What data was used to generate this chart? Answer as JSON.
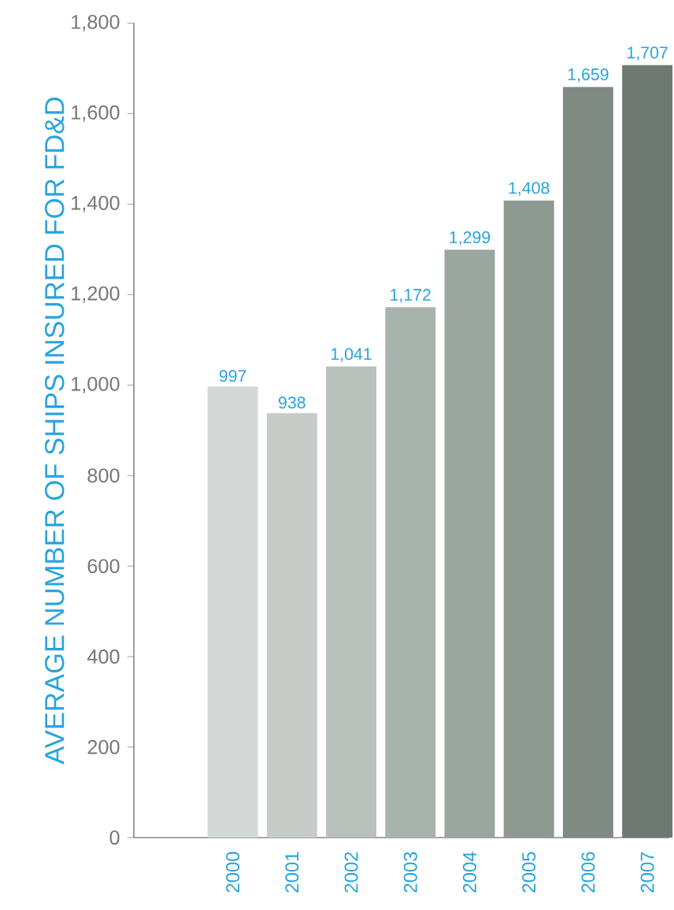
{
  "chart_data": {
    "type": "bar",
    "ylabel": "AVERAGE NUMBER OF SHIPS INSURED FOR FD&D",
    "categories": [
      "2000",
      "2001",
      "2002",
      "2003",
      "2004",
      "2005",
      "2006",
      "2007"
    ],
    "values": [
      997,
      938,
      1041,
      1172,
      1299,
      1408,
      1659,
      1707
    ],
    "value_labels": [
      "997",
      "938",
      "1,041",
      "1,172",
      "1,299",
      "1,408",
      "1,659",
      "1,707"
    ],
    "colors": [
      "#d3d9d6",
      "#c6cdc9",
      "#b8c1bc",
      "#a9b3ad",
      "#9ba69f",
      "#8e9992",
      "#7f8a82",
      "#6e7a71"
    ],
    "ylim": [
      0,
      1800
    ],
    "yticks": [
      0,
      200,
      400,
      600,
      800,
      {
        "value": 1000,
        "label": "1,000"
      },
      {
        "value": 1200,
        "label": "1,200"
      },
      {
        "value": 1400,
        "label": "1,400"
      },
      {
        "value": 1600,
        "label": "1,600"
      },
      {
        "value": 1800,
        "label": "1,800"
      }
    ],
    "grid": false
  }
}
